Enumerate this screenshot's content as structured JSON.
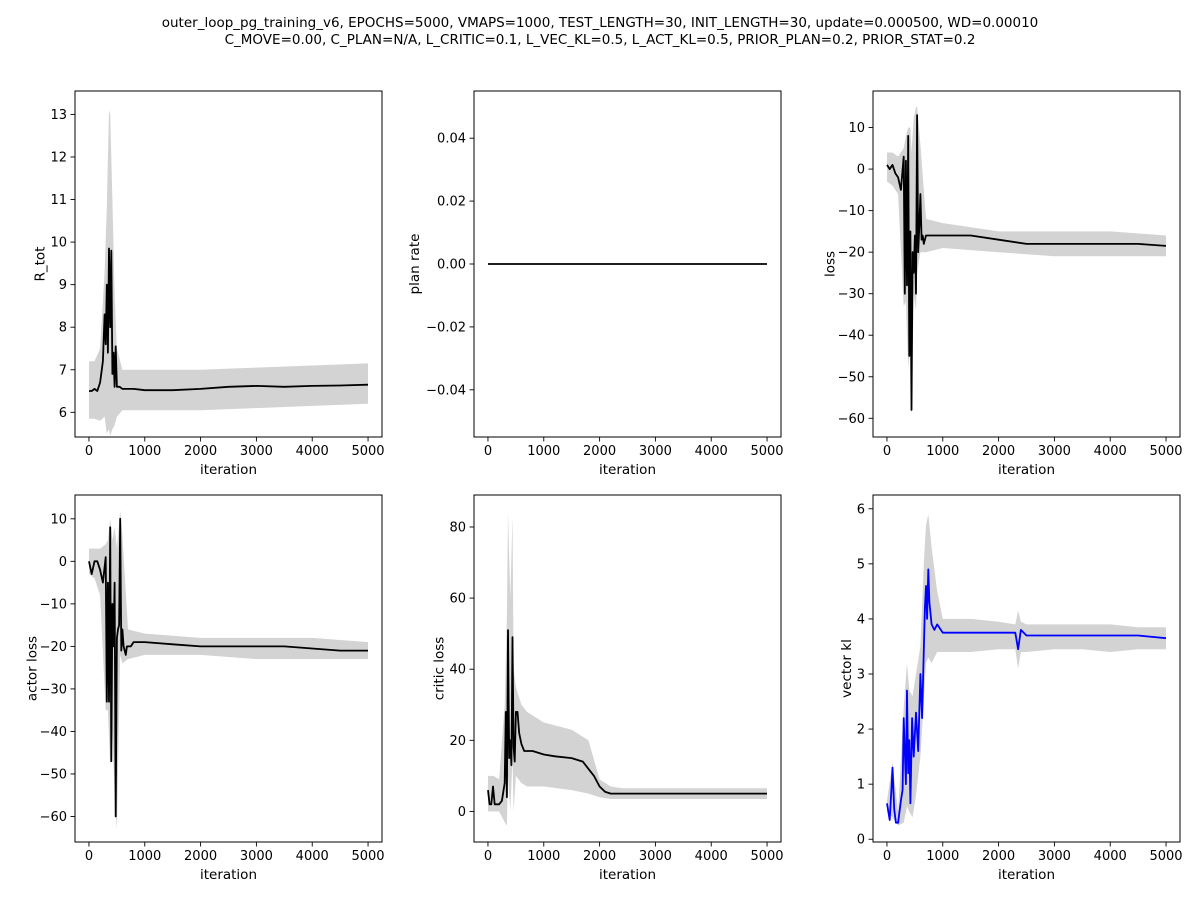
{
  "figure": {
    "suptitle_line1": "outer_loop_pg_training_v6, EPOCHS=5000, VMAPS=1000, TEST_LENGTH=30, INIT_LENGTH=30, update=0.000500, WD=0.00010",
    "suptitle_line2": "C_MOVE=0.00, C_PLAN=N/A, L_CRITIC=0.1, L_VEC_KL=0.5, L_ACT_KL=0.5, PRIOR_PLAN=0.2, PRIOR_STAT=0.2",
    "line_color": "#000000",
    "band_color": "#d3d3d3"
  },
  "chart_data": [
    {
      "type": "line",
      "name": "r-tot",
      "xlabel": "iteration",
      "ylabel": "R_tot",
      "xlim": [
        -250,
        5250
      ],
      "ylim": [
        5.42,
        13.55
      ],
      "xticks": [
        0,
        1000,
        2000,
        3000,
        4000,
        5000
      ],
      "xtick_labels": [
        "0",
        "1000",
        "2000",
        "3000",
        "4000",
        "5000"
      ],
      "yticks": [
        6,
        7,
        8,
        9,
        10,
        11,
        12,
        13
      ],
      "ytick_labels": [
        "6",
        "7",
        "8",
        "9",
        "10",
        "11",
        "12",
        "13"
      ],
      "line_color": "#000000",
      "x": [
        0,
        50,
        100,
        150,
        200,
        250,
        280,
        300,
        320,
        340,
        360,
        380,
        400,
        420,
        440,
        460,
        480,
        500,
        550,
        600,
        700,
        800,
        1000,
        1500,
        2000,
        2500,
        3000,
        3500,
        4000,
        4500,
        5000
      ],
      "y": [
        6.5,
        6.5,
        6.55,
        6.5,
        6.7,
        7.2,
        8.3,
        7.6,
        9.0,
        7.4,
        9.85,
        8.0,
        9.8,
        6.9,
        7.4,
        6.6,
        7.55,
        6.6,
        6.6,
        6.55,
        6.55,
        6.55,
        6.52,
        6.52,
        6.55,
        6.6,
        6.62,
        6.6,
        6.62,
        6.63,
        6.65
      ],
      "band_x": [
        0,
        100,
        200,
        280,
        320,
        360,
        380,
        420,
        460,
        500,
        600,
        1000,
        2000,
        3000,
        4000,
        5000
      ],
      "band_upper": [
        7.2,
        7.2,
        7.5,
        9.3,
        10.8,
        13.1,
        13.0,
        11.0,
        8.8,
        7.5,
        7.0,
        7.0,
        7.0,
        7.05,
        7.1,
        7.15
      ],
      "band_lower": [
        5.85,
        5.85,
        5.8,
        5.9,
        5.5,
        5.6,
        5.45,
        5.6,
        5.7,
        5.9,
        6.05,
        6.05,
        6.05,
        6.1,
        6.15,
        6.2
      ]
    },
    {
      "type": "line",
      "name": "plan-rate",
      "xlabel": "iteration",
      "ylabel": "plan rate",
      "xlim": [
        -250,
        5250
      ],
      "ylim": [
        -0.055,
        0.055
      ],
      "xticks": [
        0,
        1000,
        2000,
        3000,
        4000,
        5000
      ],
      "xtick_labels": [
        "0",
        "1000",
        "2000",
        "3000",
        "4000",
        "5000"
      ],
      "yticks": [
        -0.04,
        -0.02,
        0.0,
        0.02,
        0.04
      ],
      "ytick_labels": [
        "−0.04",
        "−0.02",
        "0.00",
        "0.02",
        "0.04"
      ],
      "line_color": "#000000",
      "x": [
        0,
        5000
      ],
      "y": [
        0.0,
        0.0
      ],
      "band_x": [],
      "band_upper": [],
      "band_lower": []
    },
    {
      "type": "line",
      "name": "loss",
      "xlabel": "iteration",
      "ylabel": "loss",
      "xlim": [
        -250,
        5250
      ],
      "ylim": [
        -64.5,
        18.8
      ],
      "xticks": [
        0,
        1000,
        2000,
        3000,
        4000,
        5000
      ],
      "xtick_labels": [
        "0",
        "1000",
        "2000",
        "3000",
        "4000",
        "5000"
      ],
      "yticks": [
        -60,
        -50,
        -40,
        -30,
        -20,
        -10,
        0,
        10
      ],
      "ytick_labels": [
        "−60",
        "−50",
        "−40",
        "−30",
        "−20",
        "−10",
        "0",
        "10"
      ],
      "line_color": "#000000",
      "x": [
        0,
        50,
        100,
        150,
        200,
        250,
        300,
        320,
        340,
        360,
        380,
        400,
        420,
        440,
        460,
        480,
        500,
        520,
        540,
        560,
        580,
        600,
        620,
        640,
        660,
        680,
        700,
        800,
        1000,
        1200,
        1500,
        2000,
        2500,
        3000,
        3500,
        4000,
        4500,
        5000
      ],
      "y": [
        1,
        0,
        1,
        -1,
        -2,
        -5,
        3,
        -30,
        2,
        -28,
        8,
        -45,
        -15,
        -58,
        -20,
        -25,
        -16,
        -30,
        13,
        -20,
        -14,
        -6,
        -17,
        -16,
        -18,
        -17,
        -16,
        -16,
        -16,
        -16,
        -16,
        -17,
        -18,
        -18,
        -18,
        -18,
        -18,
        -18.5
      ],
      "band_x": [
        0,
        100,
        200,
        300,
        340,
        380,
        420,
        440,
        480,
        520,
        540,
        600,
        700,
        1000,
        2000,
        3000,
        4000,
        5000
      ],
      "band_upper": [
        4,
        4,
        3,
        5,
        8,
        10,
        10,
        4,
        12,
        15,
        15,
        6,
        -12,
        -13,
        -15,
        -15,
        -15,
        -16
      ],
      "band_lower": [
        -3,
        -4,
        -6,
        -33,
        -32,
        -48,
        -40,
        -60,
        -30,
        -34,
        -25,
        -20,
        -20,
        -19,
        -20,
        -21,
        -21,
        -21
      ]
    },
    {
      "type": "line",
      "name": "actor-loss",
      "xlabel": "iteration",
      "ylabel": "actor loss",
      "xlim": [
        -250,
        5250
      ],
      "ylim": [
        -66,
        15.6
      ],
      "xticks": [
        0,
        1000,
        2000,
        3000,
        4000,
        5000
      ],
      "xtick_labels": [
        "0",
        "1000",
        "2000",
        "3000",
        "4000",
        "5000"
      ],
      "yticks": [
        -60,
        -50,
        -40,
        -30,
        -20,
        -10,
        0,
        10
      ],
      "ytick_labels": [
        "−60",
        "−50",
        "−40",
        "−30",
        "−20",
        "−10",
        "0",
        "10"
      ],
      "line_color": "#000000",
      "x": [
        0,
        50,
        100,
        150,
        200,
        250,
        300,
        320,
        340,
        360,
        380,
        400,
        420,
        440,
        460,
        480,
        500,
        520,
        540,
        560,
        580,
        600,
        620,
        640,
        660,
        680,
        700,
        750,
        800,
        1000,
        1500,
        2000,
        2500,
        3000,
        3500,
        4000,
        4500,
        5000
      ],
      "y": [
        0,
        -3,
        0,
        0,
        -2,
        -5,
        1,
        -33,
        -5,
        -33,
        8,
        -47,
        -10,
        -20,
        -5,
        -60,
        -18,
        -16,
        -15,
        10,
        -21,
        -16,
        -20,
        -21,
        -22,
        -20,
        -20,
        -20,
        -19,
        -19,
        -19.5,
        -20,
        -20,
        -20,
        -20,
        -20.5,
        -21,
        -21
      ],
      "band_x": [
        0,
        100,
        200,
        300,
        340,
        380,
        420,
        460,
        500,
        560,
        600,
        700,
        1000,
        2000,
        3000,
        4000,
        5000
      ],
      "band_upper": [
        3,
        3,
        3,
        4,
        5,
        10,
        5,
        8,
        3,
        12,
        6,
        -16,
        -17,
        -18,
        -18,
        -18,
        -19
      ],
      "band_lower": [
        -3,
        -4,
        -8,
        -35,
        -35,
        -48,
        -40,
        -55,
        -63,
        -22,
        -24,
        -23,
        -22,
        -22,
        -23,
        -23,
        -23
      ]
    },
    {
      "type": "line",
      "name": "critic-loss",
      "xlabel": "iteration",
      "ylabel": "critic loss",
      "xlim": [
        -250,
        5250
      ],
      "ylim": [
        -8.6,
        89
      ],
      "xticks": [
        0,
        1000,
        2000,
        3000,
        4000,
        5000
      ],
      "xtick_labels": [
        "0",
        "1000",
        "2000",
        "3000",
        "4000",
        "5000"
      ],
      "yticks": [
        0,
        20,
        40,
        60,
        80
      ],
      "ytick_labels": [
        "0",
        "20",
        "40",
        "60",
        "80"
      ],
      "line_color": "#000000",
      "x": [
        0,
        30,
        60,
        90,
        120,
        150,
        200,
        250,
        300,
        320,
        340,
        360,
        380,
        400,
        420,
        440,
        460,
        480,
        500,
        530,
        560,
        600,
        650,
        700,
        800,
        1000,
        1200,
        1500,
        1700,
        1800,
        1900,
        2000,
        2100,
        2200,
        2300,
        2400,
        3000,
        4000,
        5000
      ],
      "y": [
        6,
        2,
        2,
        7,
        2,
        2,
        2,
        3,
        8,
        28,
        4,
        51,
        15,
        20,
        13,
        49,
        18,
        14,
        28,
        28,
        22,
        19,
        17,
        17,
        17,
        16,
        15.5,
        15,
        14,
        12,
        10,
        7,
        5.5,
        5,
        5,
        5,
        5,
        5,
        5
      ],
      "band_x": [
        0,
        100,
        200,
        300,
        340,
        360,
        400,
        440,
        460,
        500,
        600,
        700,
        1000,
        1500,
        1800,
        2000,
        2200,
        2400,
        3000,
        4000,
        5000
      ],
      "band_upper": [
        10,
        10,
        9,
        30,
        55,
        84,
        60,
        83,
        40,
        35,
        30,
        28,
        25,
        23,
        20,
        9,
        7,
        6.5,
        6.5,
        6.5,
        6.5
      ],
      "band_lower": [
        0,
        0,
        0,
        -3,
        -4,
        10,
        0,
        15,
        0,
        10,
        8,
        7,
        7,
        6,
        5,
        4,
        3.5,
        3.5,
        3.5,
        3.5,
        3.5
      ]
    },
    {
      "type": "line",
      "name": "vector-kl",
      "xlabel": "iteration",
      "ylabel": "vector kl",
      "xlim": [
        -250,
        5250
      ],
      "ylim": [
        -0.05,
        6.25
      ],
      "xticks": [
        0,
        1000,
        2000,
        3000,
        4000,
        5000
      ],
      "xtick_labels": [
        "0",
        "1000",
        "2000",
        "3000",
        "4000",
        "5000"
      ],
      "yticks": [
        0,
        1,
        2,
        3,
        4,
        5,
        6
      ],
      "ytick_labels": [
        "0",
        "1",
        "2",
        "3",
        "4",
        "5",
        "6"
      ],
      "line_color": "#0000ff",
      "x": [
        0,
        50,
        80,
        100,
        130,
        160,
        200,
        250,
        280,
        300,
        340,
        360,
        380,
        400,
        420,
        450,
        480,
        520,
        560,
        600,
        630,
        650,
        680,
        700,
        720,
        740,
        760,
        800,
        850,
        900,
        1000,
        1200,
        1500,
        2000,
        2300,
        2350,
        2400,
        2500,
        3000,
        3500,
        4000,
        4500,
        5000
      ],
      "y": [
        0.65,
        0.35,
        0.9,
        1.3,
        0.55,
        0.3,
        0.3,
        0.7,
        0.9,
        2.2,
        1.0,
        2.7,
        1.2,
        1.8,
        0.65,
        2.2,
        1.5,
        2.3,
        1.6,
        3.0,
        2.2,
        3.0,
        4.2,
        4.6,
        4.0,
        4.9,
        4.3,
        3.9,
        3.8,
        3.9,
        3.75,
        3.75,
        3.75,
        3.75,
        3.75,
        3.45,
        3.8,
        3.7,
        3.7,
        3.7,
        3.7,
        3.7,
        3.65
      ],
      "band_x": [
        0,
        100,
        200,
        300,
        360,
        400,
        460,
        520,
        600,
        660,
        700,
        740,
        800,
        900,
        1000,
        1500,
        2000,
        2300,
        2350,
        2400,
        2500,
        3000,
        3500,
        4000,
        4500,
        5000
      ],
      "band_upper": [
        0.7,
        1.4,
        0.5,
        2.4,
        3.2,
        2.7,
        2.6,
        3.0,
        3.5,
        5.0,
        5.7,
        5.9,
        5.3,
        4.5,
        4.0,
        4.0,
        3.95,
        3.9,
        4.15,
        3.95,
        3.9,
        3.9,
        3.9,
        3.9,
        3.85,
        3.85
      ],
      "band_lower": [
        0.5,
        0.4,
        0.25,
        0.3,
        0.6,
        0.5,
        0.4,
        0.8,
        1.5,
        2.5,
        3.2,
        3.3,
        3.2,
        3.4,
        3.4,
        3.4,
        3.45,
        3.45,
        3.1,
        3.4,
        3.4,
        3.45,
        3.45,
        3.4,
        3.45,
        3.45
      ]
    }
  ]
}
